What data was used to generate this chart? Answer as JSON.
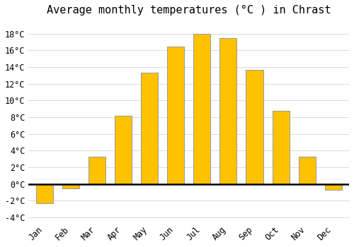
{
  "title": "Average monthly temperatures (°C ) in Chrast",
  "months": [
    "Jan",
    "Feb",
    "Mar",
    "Apr",
    "May",
    "Jun",
    "Jul",
    "Aug",
    "Sep",
    "Oct",
    "Nov",
    "Dec"
  ],
  "values": [
    -2.3,
    -0.5,
    3.3,
    8.2,
    13.3,
    16.5,
    18.0,
    17.5,
    13.7,
    8.8,
    3.3,
    -0.7
  ],
  "bar_color": "#FFC200",
  "bar_edge_color": "#999999",
  "background_color": "#ffffff",
  "plot_bg_color": "#ffffff",
  "grid_color": "#dddddd",
  "zero_line_color": "#000000",
  "ylim": [
    -4.5,
    19.5
  ],
  "yticks": [
    -4,
    -2,
    0,
    2,
    4,
    6,
    8,
    10,
    12,
    14,
    16,
    18
  ],
  "title_fontsize": 11,
  "tick_fontsize": 8.5,
  "figsize": [
    5.0,
    3.5
  ],
  "dpi": 100
}
